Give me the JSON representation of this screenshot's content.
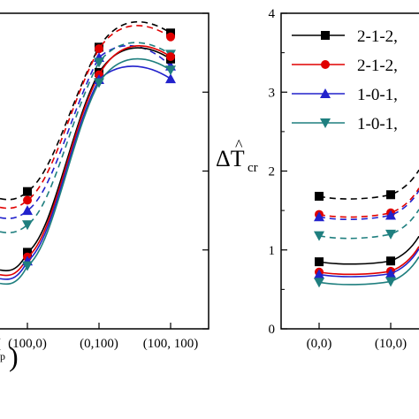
{
  "chart_data": [
    {
      "type": "line",
      "title": "",
      "xlabel_fragment": "p",
      "x_categories": [
        "(100,0)",
        "(0,100)",
        "(100, 100)"
      ],
      "x_partial_first_label": "(",
      "ylim_hint": [
        0,
        4
      ],
      "series": [
        {
          "color": "#000000",
          "marker": "square",
          "style": "dashed",
          "values": [
            1.74,
            3.57,
            3.75
          ]
        },
        {
          "color": "#e00000",
          "marker": "circle",
          "style": "dashed",
          "values": [
            1.63,
            3.55,
            3.7
          ]
        },
        {
          "color": "#2222cc",
          "marker": "triangle-up",
          "style": "dashed",
          "values": [
            1.5,
            3.44,
            3.33
          ]
        },
        {
          "color": "#1f7f7f",
          "marker": "triangle-down",
          "style": "dashed",
          "values": [
            1.32,
            3.38,
            3.48
          ]
        },
        {
          "color": "#000000",
          "marker": "square",
          "style": "solid",
          "values": [
            0.97,
            3.25,
            3.42
          ]
        },
        {
          "color": "#e00000",
          "marker": "circle",
          "style": "solid",
          "values": [
            0.91,
            3.22,
            3.45
          ]
        },
        {
          "color": "#2222cc",
          "marker": "triangle-up",
          "style": "solid",
          "values": [
            0.86,
            3.16,
            3.17
          ]
        },
        {
          "color": "#1f7f7f",
          "marker": "triangle-down",
          "style": "solid",
          "values": [
            0.8,
            3.12,
            3.28
          ]
        }
      ]
    },
    {
      "type": "line",
      "title": "",
      "ylabel": "ΔT̂cr",
      "ylabel_main": "ΔT",
      "ylabel_sub": "cr",
      "ylim": [
        0,
        4
      ],
      "yticks": [
        "0",
        "1",
        "2",
        "3",
        "4"
      ],
      "x_categories": [
        "(0,0)",
        "(10,0)"
      ],
      "legend": [
        {
          "label": "2-1-2,",
          "color": "#000000",
          "marker": "square"
        },
        {
          "label": "2-1-2,",
          "color": "#e00000",
          "marker": "circle"
        },
        {
          "label": "1-0-1,",
          "color": "#2222cc",
          "marker": "triangle-up"
        },
        {
          "label": "1-0-1,",
          "color": "#1f7f7f",
          "marker": "triangle-down"
        }
      ],
      "series": [
        {
          "color": "#000000",
          "marker": "square",
          "style": "dashed",
          "values": [
            1.68,
            1.7
          ]
        },
        {
          "color": "#e00000",
          "marker": "circle",
          "style": "dashed",
          "values": [
            1.45,
            1.47
          ]
        },
        {
          "color": "#2222cc",
          "marker": "triangle-up",
          "style": "dashed",
          "values": [
            1.42,
            1.44
          ]
        },
        {
          "color": "#1f7f7f",
          "marker": "triangle-down",
          "style": "dashed",
          "values": [
            1.18,
            1.2
          ]
        },
        {
          "color": "#000000",
          "marker": "square",
          "style": "solid",
          "values": [
            0.85,
            0.86
          ]
        },
        {
          "color": "#e00000",
          "marker": "circle",
          "style": "solid",
          "values": [
            0.72,
            0.73
          ]
        },
        {
          "color": "#2222cc",
          "marker": "triangle-up",
          "style": "solid",
          "values": [
            0.69,
            0.7
          ]
        },
        {
          "color": "#1f7f7f",
          "marker": "triangle-down",
          "style": "solid",
          "values": [
            0.59,
            0.6
          ]
        }
      ]
    }
  ]
}
